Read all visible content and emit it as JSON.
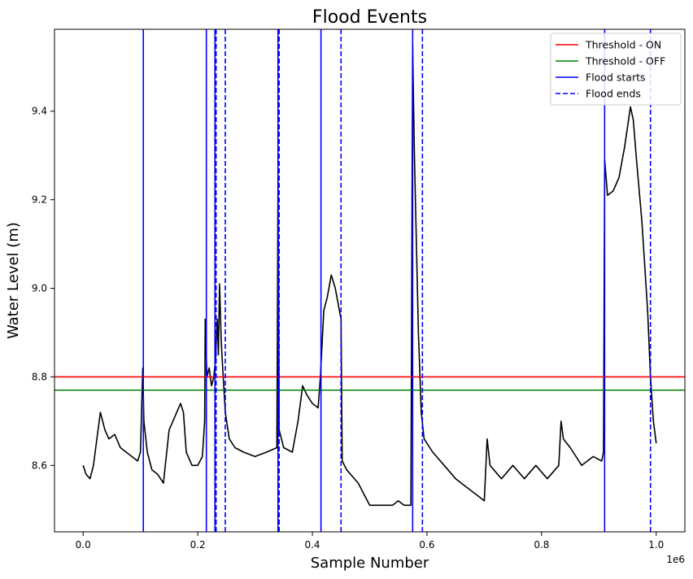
{
  "chart_data": {
    "type": "line",
    "title": "Flood Events",
    "xlabel": "Sample Number",
    "ylabel": "Water Level (m)",
    "x_offset_text": "1e6",
    "xlim": [
      -50000,
      1050000
    ],
    "ylim": [
      8.45,
      9.585
    ],
    "xticks": [
      0,
      200000,
      400000,
      600000,
      800000,
      1000000
    ],
    "xtick_labels": [
      "0.0",
      "0.2",
      "0.4",
      "0.6",
      "0.8",
      "1.0"
    ],
    "yticks": [
      8.6,
      8.8,
      9.0,
      9.2,
      9.4
    ],
    "ytick_labels": [
      "8.6",
      "8.8",
      "9.0",
      "9.2",
      "9.4"
    ],
    "legend_position": "top-right",
    "grid": false,
    "thresholds": [
      {
        "name": "Threshold - ON",
        "value": 8.8,
        "color": "#ff0000"
      },
      {
        "name": "Threshold - OFF",
        "value": 8.77,
        "color": "#008000"
      }
    ],
    "flood_starts": {
      "name": "Flood starts",
      "color": "#0000ff",
      "style": "solid",
      "x": [
        105000,
        215000,
        230000,
        340000,
        415000,
        575000,
        910000
      ]
    },
    "flood_ends": {
      "name": "Flood ends",
      "color": "#0000ff",
      "style": "dashed",
      "x": [
        232000,
        248000,
        342000,
        450000,
        592000,
        990000
      ]
    },
    "series": [
      {
        "color": "#000000",
        "x": [
          0,
          5000,
          12000,
          18000,
          24000,
          30000,
          38000,
          45000,
          55000,
          65000,
          75000,
          85000,
          95000,
          100000,
          104000,
          106000,
          112000,
          120000,
          130000,
          140000,
          150000,
          160000,
          170000,
          175000,
          180000,
          190000,
          200000,
          208000,
          212000,
          213000,
          216000,
          220000,
          224000,
          228000,
          231000,
          234000,
          236000,
          238000,
          241000,
          244000,
          248000,
          255000,
          265000,
          280000,
          300000,
          320000,
          338000,
          340000,
          342000,
          350000,
          365000,
          375000,
          383000,
          390000,
          400000,
          410000,
          414000,
          420000,
          426000,
          433000,
          440000,
          450000,
          452000,
          460000,
          480000,
          500000,
          520000,
          540000,
          550000,
          560000,
          572000,
          575000,
          578000,
          585000,
          590000,
          595000,
          610000,
          630000,
          650000,
          670000,
          690000,
          700000,
          705000,
          710000,
          730000,
          750000,
          770000,
          790000,
          810000,
          830000,
          834000,
          838000,
          850000,
          870000,
          890000,
          905000,
          908000,
          910000,
          915000,
          925000,
          935000,
          945000,
          955000,
          960000,
          965000,
          975000,
          985000,
          990000,
          995000,
          1000000
        ],
        "y": [
          8.6,
          8.58,
          8.57,
          8.6,
          8.66,
          8.72,
          8.68,
          8.66,
          8.67,
          8.64,
          8.63,
          8.62,
          8.61,
          8.63,
          8.82,
          8.7,
          8.63,
          8.59,
          8.58,
          8.56,
          8.68,
          8.71,
          8.74,
          8.72,
          8.63,
          8.6,
          8.6,
          8.62,
          8.7,
          8.93,
          8.8,
          8.82,
          8.78,
          8.8,
          8.84,
          8.93,
          8.85,
          9.01,
          8.88,
          8.81,
          8.72,
          8.66,
          8.64,
          8.63,
          8.62,
          8.63,
          8.64,
          9.25,
          8.68,
          8.64,
          8.63,
          8.7,
          8.78,
          8.76,
          8.74,
          8.73,
          8.8,
          8.95,
          8.98,
          9.03,
          9.0,
          8.93,
          8.61,
          8.59,
          8.56,
          8.51,
          8.51,
          8.51,
          8.52,
          8.51,
          8.51,
          9.55,
          9.3,
          8.9,
          8.72,
          8.66,
          8.63,
          8.6,
          8.57,
          8.55,
          8.53,
          8.52,
          8.66,
          8.6,
          8.57,
          8.6,
          8.57,
          8.6,
          8.57,
          8.6,
          8.7,
          8.66,
          8.64,
          8.6,
          8.62,
          8.61,
          8.63,
          9.29,
          9.21,
          9.22,
          9.25,
          9.32,
          9.41,
          9.38,
          9.3,
          9.15,
          8.95,
          8.8,
          8.7,
          8.65
        ]
      }
    ]
  }
}
